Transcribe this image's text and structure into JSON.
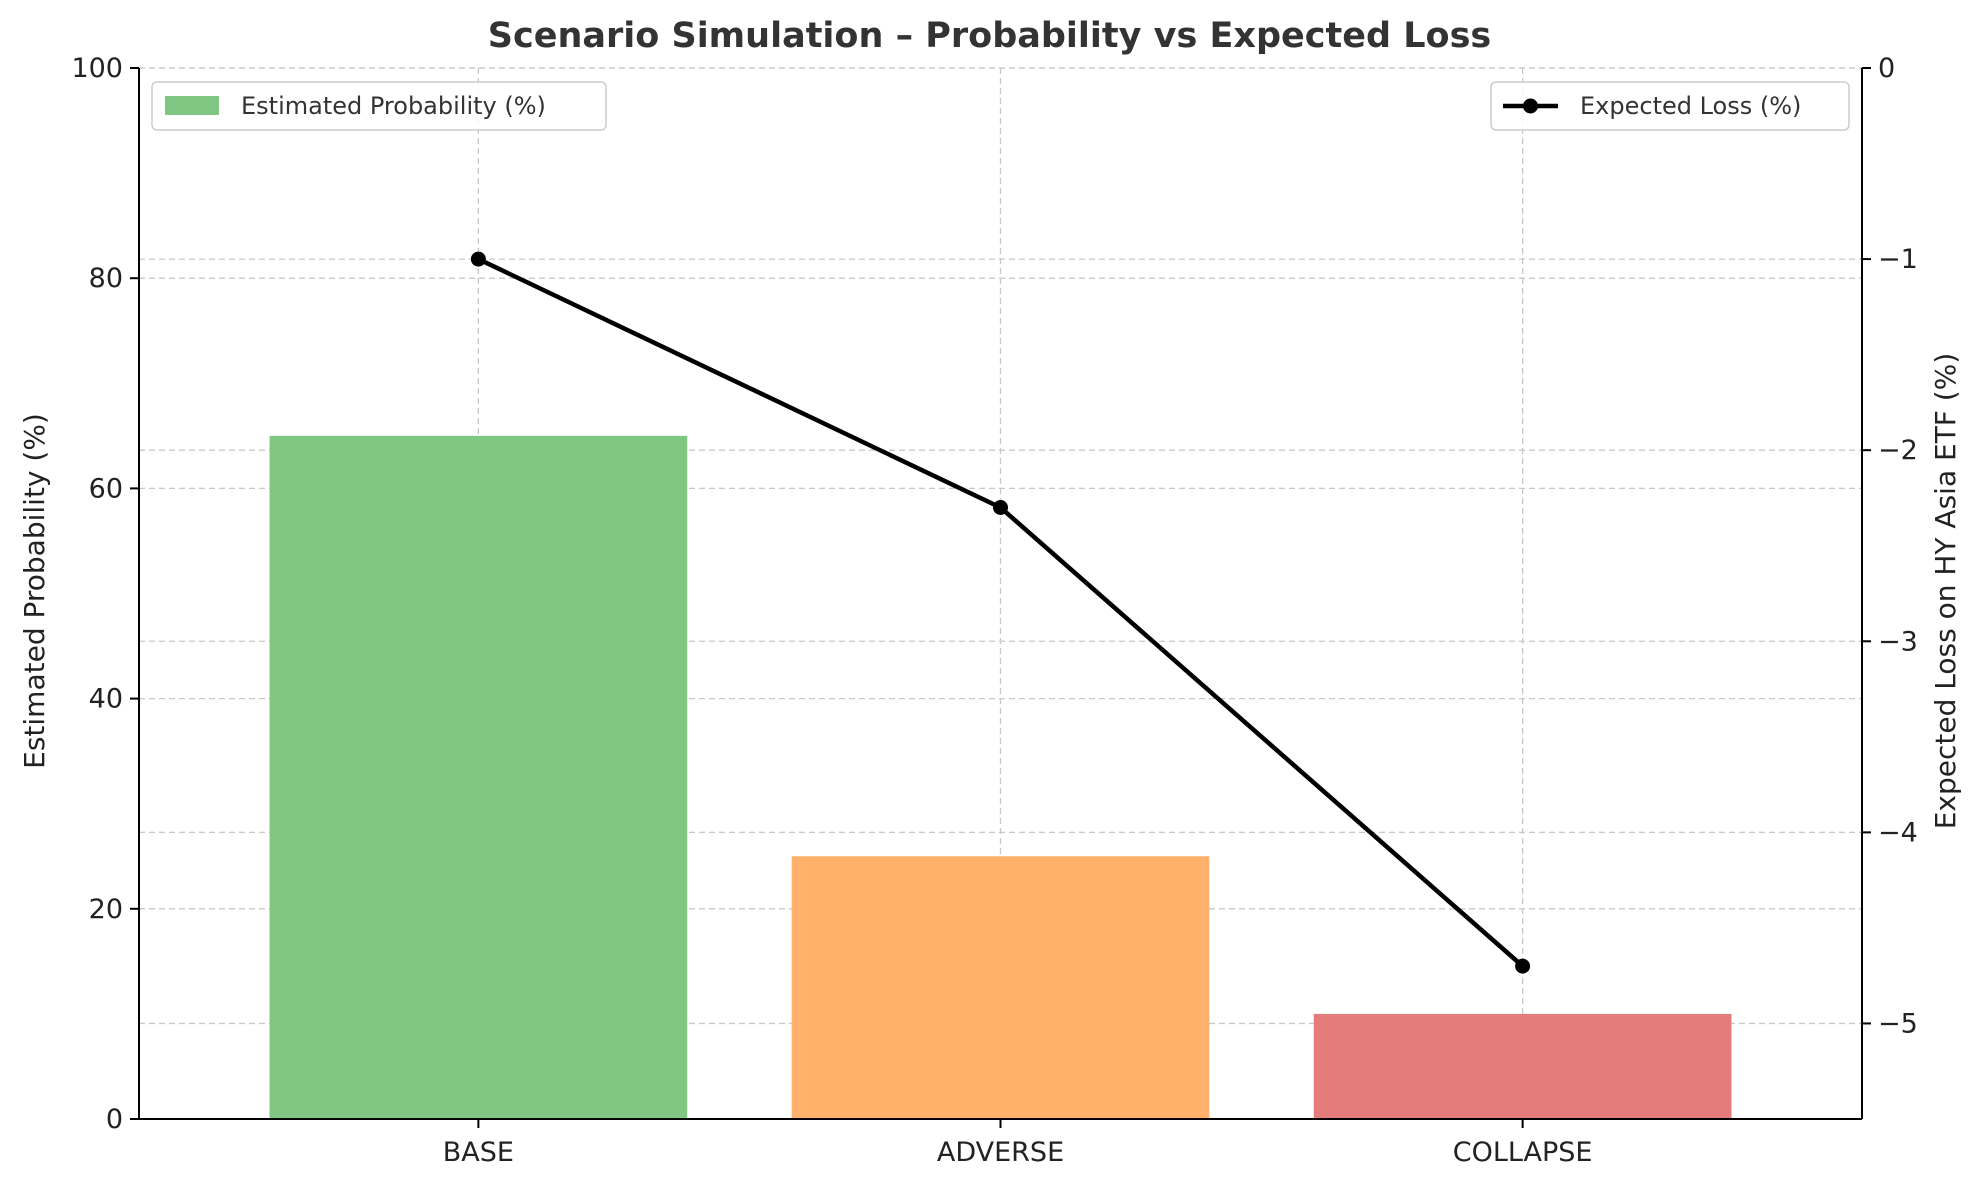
{
  "chart_data": {
    "type": "bar",
    "title": "Scenario Simulation – Probability vs Expected Loss",
    "categories": [
      "BASE",
      "ADVERSE",
      "COLLAPSE"
    ],
    "series": [
      {
        "name": "Estimated Probability (%)",
        "kind": "bar",
        "axis": "left",
        "values": [
          65,
          25,
          10
        ],
        "colors": [
          "#81c784",
          "#ffb06b",
          "#e57c7c"
        ]
      },
      {
        "name": "Expected Loss (%)",
        "kind": "line",
        "axis": "right",
        "values": [
          -1.0,
          -2.3,
          -4.7
        ],
        "color": "#000000",
        "marker": "circle"
      }
    ],
    "ylabel": "Estimated Probability (%)",
    "y2label": "Expected Loss on HY Asia ETF (%)",
    "ylim": [
      0,
      100
    ],
    "y2lim": [
      -5.5,
      0
    ],
    "yticks": [
      0,
      20,
      40,
      60,
      80,
      100
    ],
    "y2ticks": [
      0,
      -1,
      -2,
      -3,
      -4,
      -5
    ],
    "y2tick_labels": [
      "0",
      "−1",
      "−2",
      "−3",
      "−4",
      "−5"
    ],
    "grid": true,
    "legend_left": "top-left",
    "legend_right": "top-right"
  }
}
